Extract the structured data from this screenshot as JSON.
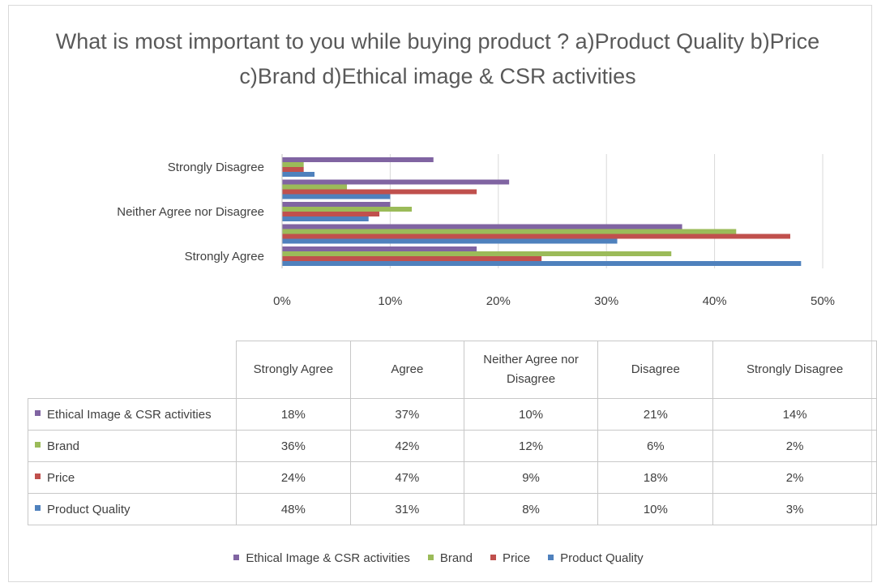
{
  "chart_data": {
    "type": "bar",
    "orientation": "horizontal",
    "title": "What is most important to you while buying product ? a)Product Quality b)Price c)Brand d)Ethical image & CSR activities",
    "categories": [
      "Strongly Agree",
      "Agree",
      "Neither Agree nor Disagree",
      "Disagree",
      "Strongly Disagree"
    ],
    "category_axis_labels": [
      "Strongly Agree",
      "",
      "Neither Agree nor Disagree",
      "",
      "Strongly Disagree"
    ],
    "table_headers": [
      "Strongly Agree",
      "Agree",
      "Neither Agree nor Disagree",
      "Disagree",
      "Strongly Disagree"
    ],
    "series": [
      {
        "name": "Product Quality",
        "color": "#4f81bd",
        "values": [
          48,
          31,
          8,
          10,
          3
        ],
        "labels": [
          "48%",
          "31%",
          "8%",
          "10%",
          "3%"
        ]
      },
      {
        "name": "Price",
        "color": "#c0504d",
        "values": [
          24,
          47,
          9,
          18,
          2
        ],
        "labels": [
          "24%",
          "47%",
          "9%",
          "18%",
          "2%"
        ]
      },
      {
        "name": "Brand",
        "color": "#9bbb59",
        "values": [
          36,
          42,
          12,
          6,
          2
        ],
        "labels": [
          "36%",
          "42%",
          "12%",
          "6%",
          "2%"
        ]
      },
      {
        "name": "Ethical Image & CSR activities",
        "color": "#8064a2",
        "values": [
          18,
          37,
          10,
          21,
          14
        ],
        "labels": [
          "18%",
          "37%",
          "10%",
          "21%",
          "14%"
        ]
      }
    ],
    "table_row_order": [
      "Ethical Image & CSR activities",
      "Brand",
      "Price",
      "Product Quality"
    ],
    "legend_order": [
      "Ethical Image & CSR activities",
      "Brand",
      "Price",
      "Product Quality"
    ],
    "x_ticks": [
      "0%",
      "10%",
      "20%",
      "30%",
      "40%",
      "50%"
    ],
    "xlim": [
      0,
      50
    ],
    "grid": true,
    "legend_position": "bottom"
  }
}
